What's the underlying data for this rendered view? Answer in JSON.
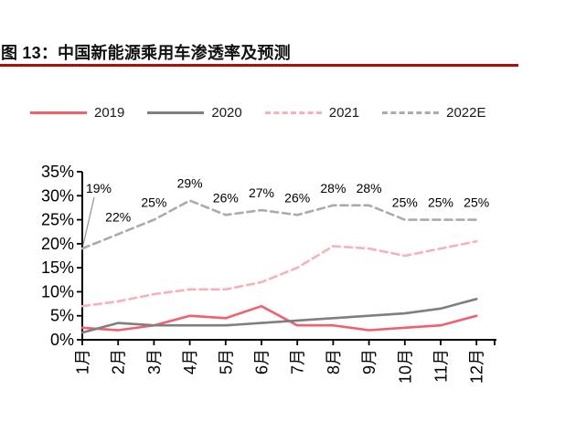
{
  "figure": {
    "title": "图 13：中国新能源乘用车渗透率及预测",
    "accent_underline_color": "#b20b0b"
  },
  "chart_data": {
    "type": "line",
    "title": "中国新能源乘用车渗透率及预测",
    "categories": [
      "1月",
      "2月",
      "3月",
      "4月",
      "5月",
      "6月",
      "7月",
      "8月",
      "9月",
      "10月",
      "11月",
      "12月"
    ],
    "y_tick_labels": [
      "0%",
      "5%",
      "10%",
      "15%",
      "20%",
      "25%",
      "30%",
      "35%"
    ],
    "ylim": [
      0,
      35
    ],
    "ytick_step": 5,
    "unit": "%",
    "grid": false,
    "legend_position": "top",
    "series": [
      {
        "name": "2019",
        "line_style": "solid",
        "color": "#f2606e",
        "values": [
          2.5,
          2,
          3,
          5,
          4.5,
          7,
          3,
          3,
          2,
          2.5,
          3,
          5
        ]
      },
      {
        "name": "2020",
        "line_style": "solid",
        "color": "#7f7f7f",
        "values": [
          1.5,
          3.5,
          3,
          3,
          3,
          3.5,
          4,
          4.5,
          5,
          5.5,
          6.5,
          8.5
        ]
      },
      {
        "name": "2021",
        "line_style": "dashed",
        "color": "#f7b2b7",
        "values": [
          7,
          8,
          9.5,
          10.5,
          10.5,
          12,
          15,
          19.5,
          19,
          17.5,
          19,
          20.5
        ]
      },
      {
        "name": "2022E",
        "line_style": "dashed",
        "color": "#ababab",
        "values": [
          19,
          22,
          25,
          29,
          26,
          27,
          26,
          28,
          28,
          25,
          25,
          25
        ],
        "data_labels": [
          "19%",
          "22%",
          "25%",
          "29%",
          "26%",
          "27%",
          "26%",
          "28%",
          "28%",
          "25%",
          "25%",
          "25%"
        ]
      }
    ]
  }
}
